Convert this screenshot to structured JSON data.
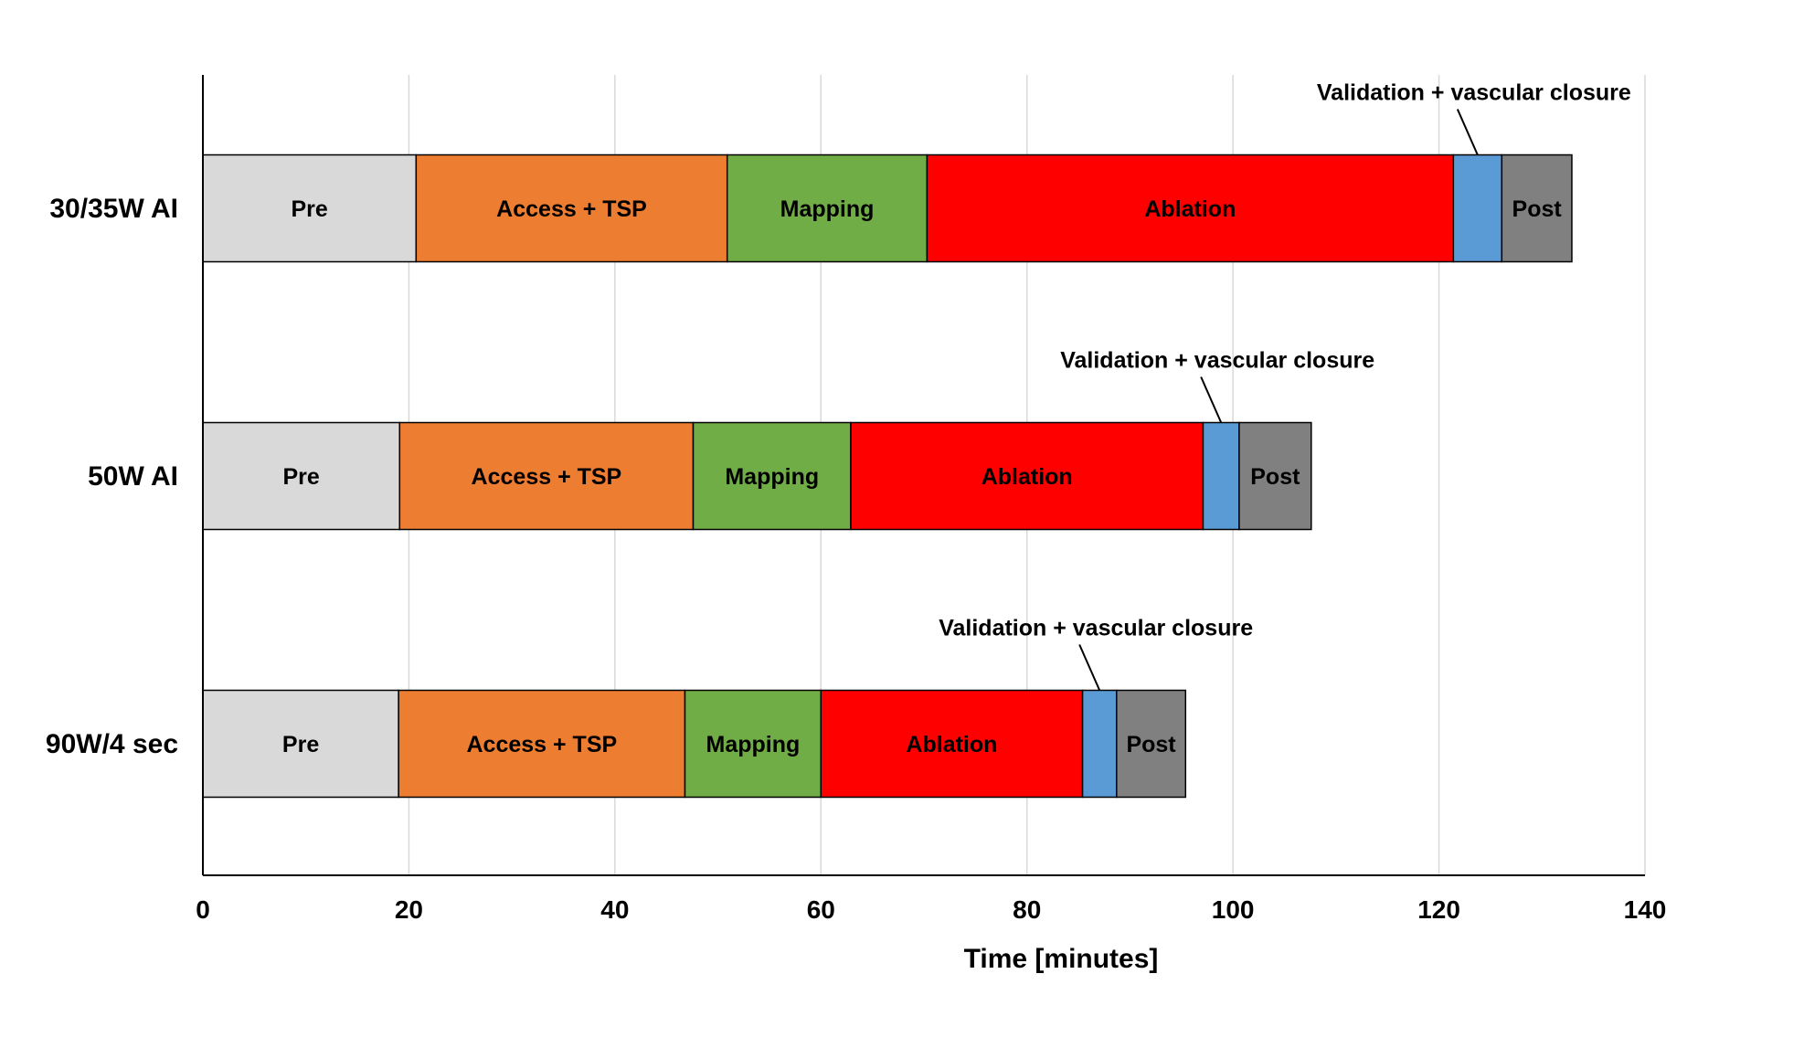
{
  "chart_data": {
    "type": "bar",
    "orientation": "horizontal",
    "stacked": true,
    "xlabel": "Time [minutes]",
    "ylabel": "",
    "xlim": [
      0,
      140
    ],
    "xticks": [
      0,
      20,
      40,
      60,
      80,
      100,
      120,
      140
    ],
    "grid": true,
    "categories": [
      "30/35W AI",
      "50W AI",
      "90W/4 sec"
    ],
    "series": [
      {
        "name": "Pre",
        "label": "Pre",
        "color": "#d9d9d9",
        "values": [
          20.7,
          19.1,
          19.0
        ]
      },
      {
        "name": "Access + TSP",
        "label": "Access + TSP",
        "color": "#ed7d31",
        "values": [
          30.2,
          28.5,
          27.8
        ]
      },
      {
        "name": "Mapping",
        "label": "Mapping",
        "color": "#70ad47",
        "values": [
          19.4,
          15.3,
          13.2
        ]
      },
      {
        "name": "Ablation",
        "label": "Ablation",
        "color": "#ff0000",
        "values": [
          51.1,
          34.2,
          25.4
        ]
      },
      {
        "name": "Validation + vascular closure",
        "label": "",
        "color": "#5b9bd5",
        "values": [
          4.7,
          3.5,
          3.3
        ]
      },
      {
        "name": "Post",
        "label": "Post",
        "color": "#808080",
        "values": [
          6.8,
          7.0,
          6.7
        ]
      }
    ],
    "annotations": [
      {
        "text": "Validation + vascular closure",
        "row": 0
      },
      {
        "text": "Validation + vascular closure",
        "row": 1
      },
      {
        "text": "Validation + vascular closure",
        "row": 2
      }
    ]
  }
}
